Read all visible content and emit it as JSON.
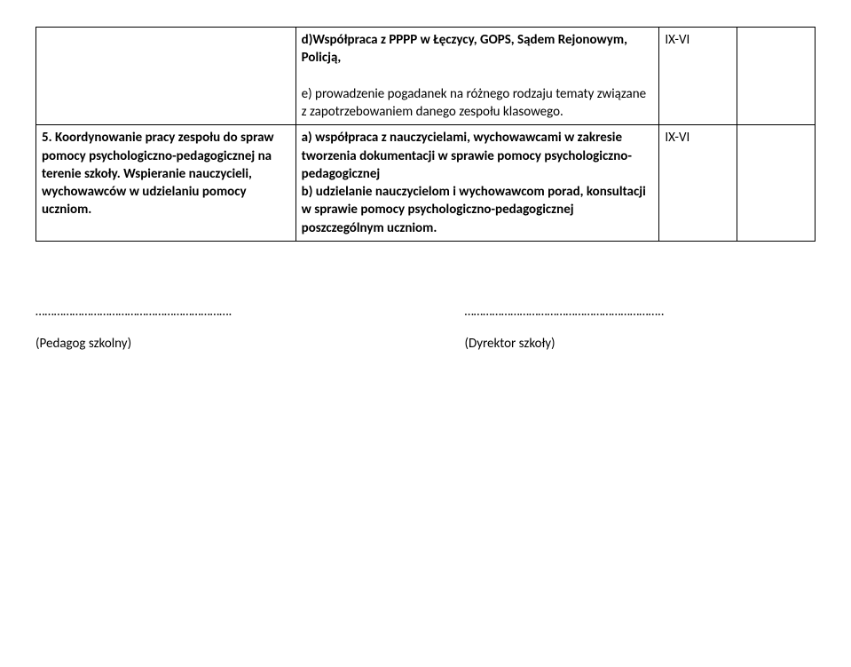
{
  "table": {
    "row1": {
      "col1": "",
      "col2_bold": "d)Współpraca z  PPPP w Łęczycy, GOPS, Sądem Rejonowym, Policją,",
      "col2_rest": "e) prowadzenie pogadanek na różnego rodzaju tematy związane z zapotrzebowaniem danego zespołu klasowego.",
      "col3": "IX-VI",
      "col4": ""
    },
    "row2": {
      "col1": "5. Koordynowanie pracy zespołu do spraw pomocy psychologiczno-pedagogicznej na terenie szkoły. Wspieranie nauczycieli, wychowawców w udzielaniu pomocy uczniom.",
      "col2": "a) współpraca z nauczycielami, wychowawcami w zakresie tworzenia dokumentacji w sprawie pomocy psychologiczno-pedagogicznej\nb) udzielanie nauczycielom i wychowawcom porad, konsultacji w sprawie pomocy psychologiczno-pedagogicznej poszczególnym uczniom.",
      "col3": "IX-VI",
      "col4": ""
    }
  },
  "footer": {
    "left_dots": "……………………………………………………….",
    "left_label": "(Pedagog szkolny)",
    "right_dots": "………………………………………………………..",
    "right_label": "(Dyrektor szkoły)"
  },
  "styles": {
    "text_color": "#000000",
    "background_color": "#ffffff",
    "border_color": "#000000",
    "font_size_body": 15,
    "font_family": "Calibri"
  }
}
